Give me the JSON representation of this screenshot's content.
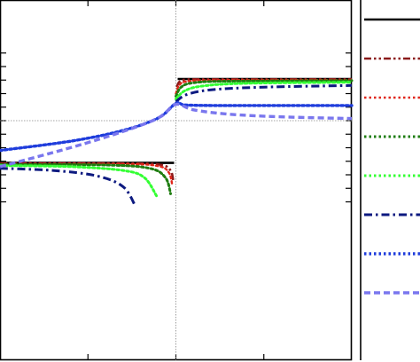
{
  "chart_data": {
    "type": "line",
    "title": "",
    "xlabel": "",
    "ylabel": "",
    "xlim": [
      -1,
      1
    ],
    "ylim": [
      -1.55,
      1.25
    ],
    "grid": false,
    "reference_lines": {
      "x": 0,
      "y": 0
    },
    "legend": {
      "placement": "right",
      "labels_visible": false
    },
    "colors": {
      "frame": "#000000",
      "reference": "#888888",
      "s1": "#000000",
      "s2": "#8b1a1a",
      "s3": "#e0261a",
      "s4": "#1e7d10",
      "s5": "#33ff33",
      "s6": "#0d1a80",
      "s7": "#1f3ddc",
      "s8": "#7a77ee"
    },
    "series": [
      {
        "id": "s1",
        "dash": "solid",
        "width": 2.6,
        "left": {
          "x": [
            -1,
            -0.01
          ],
          "y": [
            -0.78,
            -0.78
          ]
        },
        "right": {
          "x": [
            0.01,
            1
          ],
          "y": [
            0.77,
            0.77
          ]
        }
      },
      {
        "id": "s2",
        "dash": "dashdotdot",
        "width": 2.6,
        "left": {
          "x": [
            -1,
            -0.25,
            -0.08,
            -0.03,
            -0.015
          ],
          "y": [
            -0.79,
            -0.79,
            -0.82,
            -0.92,
            -1.1
          ]
        },
        "right": {
          "x": [
            0.005,
            0.02,
            0.06,
            0.2,
            1
          ],
          "y": [
            0.62,
            0.72,
            0.76,
            0.765,
            0.765
          ]
        }
      },
      {
        "id": "s3",
        "dash": "dotted",
        "width": 2.4,
        "left": {
          "x": [
            -1,
            -0.3,
            -0.1,
            -0.04,
            -0.02
          ],
          "y": [
            -0.8,
            -0.8,
            -0.84,
            -0.96,
            -1.2
          ]
        },
        "right": {
          "x": [
            0,
            0.02,
            0.07,
            0.25,
            1
          ],
          "y": [
            0.5,
            0.66,
            0.73,
            0.75,
            0.75
          ]
        }
      },
      {
        "id": "s4",
        "dash": "dotted",
        "width": 3.0,
        "left": {
          "x": [
            -1,
            -0.4,
            -0.15,
            -0.06,
            -0.03
          ],
          "y": [
            -0.81,
            -0.82,
            -0.88,
            -1.05,
            -1.35
          ]
        },
        "right": {
          "x": [
            0,
            0.03,
            0.1,
            0.3,
            1
          ],
          "y": [
            0.45,
            0.62,
            0.7,
            0.73,
            0.74
          ]
        }
      },
      {
        "id": "s5",
        "dash": "dotted",
        "width": 3.0,
        "left": {
          "x": [
            -1,
            -0.6,
            -0.3,
            -0.18,
            -0.11
          ],
          "y": [
            -0.83,
            -0.85,
            -0.92,
            -1.05,
            -1.39
          ]
        },
        "right": {
          "x": [
            0,
            0.05,
            0.15,
            0.4,
            1
          ],
          "y": [
            0.4,
            0.55,
            0.64,
            0.69,
            0.71
          ]
        }
      },
      {
        "id": "s6",
        "dash": "dashdot",
        "width": 3.0,
        "left": {
          "x": [
            -1,
            -0.7,
            -0.45,
            -0.3,
            -0.23
          ],
          "y": [
            -0.88,
            -0.92,
            -1.02,
            -1.22,
            -1.58
          ]
        },
        "right": {
          "x": [
            0,
            0.06,
            0.2,
            0.5,
            1
          ],
          "y": [
            0.35,
            0.48,
            0.57,
            0.62,
            0.65
          ]
        }
      },
      {
        "id": "s7",
        "dash": "dotted",
        "width": 3.4,
        "curve": {
          "x": [
            -1,
            -0.6,
            -0.3,
            -0.1,
            0,
            0.05,
            0.2,
            0.5,
            1
          ],
          "y": [
            -0.55,
            -0.38,
            -0.18,
            0.05,
            0.32,
            0.29,
            0.28,
            0.28,
            0.28
          ]
        }
      },
      {
        "id": "s8",
        "dash": "dashed",
        "width": 3.4,
        "curve": {
          "x": [
            -1,
            -0.6,
            -0.3,
            -0.1,
            0,
            0.1,
            0.3,
            0.6,
            1
          ],
          "y": [
            -0.85,
            -0.5,
            -0.2,
            0.05,
            0.3,
            0.2,
            0.12,
            0.07,
            0.04
          ]
        }
      }
    ]
  }
}
